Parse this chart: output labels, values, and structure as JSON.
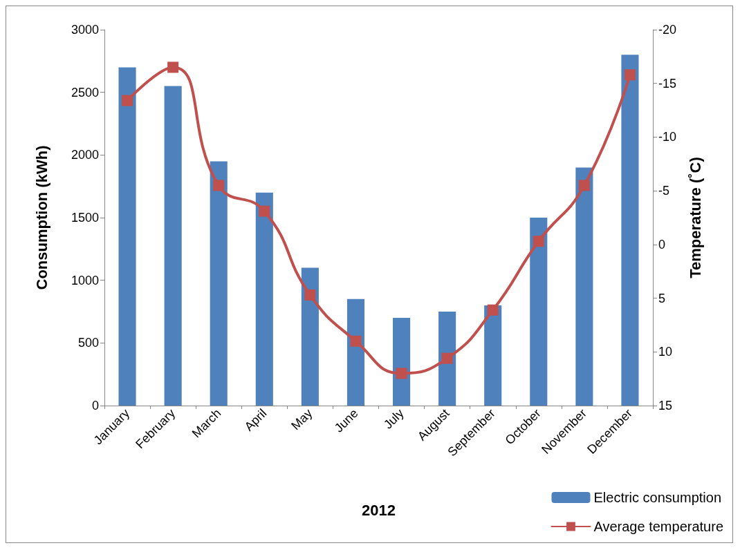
{
  "chart_data": {
    "type": "bar",
    "xlabel": "2012",
    "ylabel": "Consumption (kWh)",
    "y2label": "Temperature (˚C)",
    "categories": [
      "January",
      "February",
      "March",
      "April",
      "May",
      "June",
      "July",
      "August",
      "September",
      "October",
      "November",
      "December"
    ],
    "series": [
      {
        "name": "Electric consumption",
        "color": "#4f81bd",
        "values": [
          2700,
          2550,
          1950,
          1700,
          1100,
          850,
          700,
          750,
          800,
          1500,
          1900,
          2800
        ]
      },
      {
        "name": "Average temperature",
        "type": "line",
        "axis": "y2",
        "color": "#c0504d",
        "values": [
          -13.4,
          -16.5,
          -5.5,
          -3.1,
          4.7,
          9.0,
          12.0,
          10.6,
          6.1,
          -0.3,
          -5.5,
          -15.8
        ]
      }
    ],
    "ylim": [
      0,
      3000
    ],
    "yticks": [
      0,
      500,
      1000,
      1500,
      2000,
      2500,
      3000
    ],
    "y2lim": [
      15,
      -20
    ],
    "y2ticks": [
      -20,
      -15,
      -10,
      -5,
      0,
      5,
      10,
      15
    ],
    "grid": false,
    "legend": "bottom right",
    "marker": "square",
    "line_style": "solid"
  }
}
